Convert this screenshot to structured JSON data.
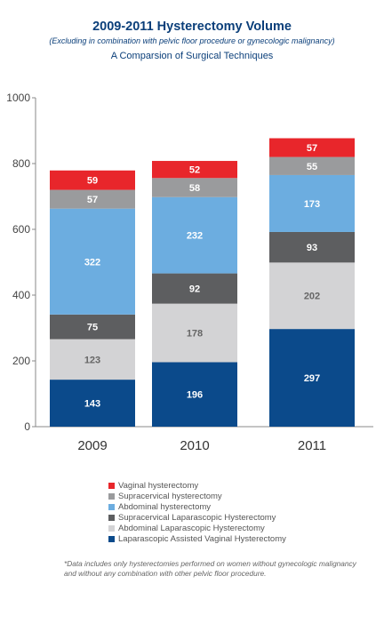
{
  "chart_data": {
    "type": "bar",
    "stacked": true,
    "title": "2009-2011 Hysterectomy Volume",
    "subtitle": "(Excluding in combination with pelvic floor procedure or gynecologic malignancy)",
    "subtitle2": "A Comparsion of Surgical Techniques",
    "categories": [
      "2009",
      "2010",
      "2011"
    ],
    "ylim": [
      0,
      1000
    ],
    "yticks": [
      0,
      200,
      400,
      600,
      800,
      1000
    ],
    "grid": false,
    "legend_position": "bottom",
    "series": [
      {
        "name": "Laparascopic Assisted Vaginal Hysterectomy",
        "color": "#0b4a8b",
        "values": [
          143,
          196,
          297
        ]
      },
      {
        "name": "Abdominal Laparascopic Hysterectomy",
        "color": "#d3d3d5",
        "values": [
          123,
          178,
          202
        ]
      },
      {
        "name": "Supracervical Laparascopic Hysterectomy",
        "color": "#5d5e60",
        "values": [
          75,
          92,
          93
        ]
      },
      {
        "name": "Abdominal hysterectomy",
        "color": "#6cade0",
        "values": [
          322,
          232,
          173
        ]
      },
      {
        "name": "Supracervical hysterectomy",
        "color": "#9a9b9d",
        "values": [
          57,
          58,
          55
        ]
      },
      {
        "name": "Vaginal hysterectomy",
        "color": "#e8262b",
        "values": [
          59,
          52,
          57
        ]
      }
    ]
  },
  "footnote": "*Data includes only hysterectomies performed on women without gynecologic malignancy and without any combination with other pelvic floor procedure."
}
